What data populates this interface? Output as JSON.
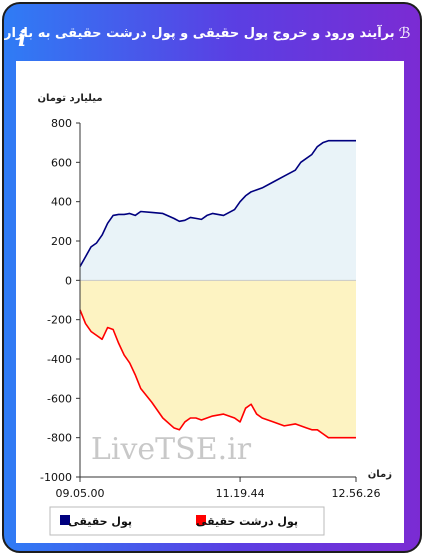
{
  "header": {
    "title": "برآیند ورود و خروج پول حقیقی و پول درشت حقیقی به بازار",
    "title_icon": "chart-icon",
    "info_icon": "info-icon",
    "info_glyph": "i"
  },
  "chart_data": {
    "type": "area",
    "ylabel": "میلیارد تومان",
    "xlabel": "زمان",
    "ylim": [
      -1000,
      800
    ],
    "yticks": [
      800,
      600,
      400,
      200,
      0,
      -200,
      -400,
      -600,
      -800,
      -1000
    ],
    "xticks": [
      "09.05.00",
      "11.19.44",
      "12.56.26"
    ],
    "x_tick_positions": [
      0,
      0.58,
      1
    ],
    "watermark": "LiveTSE.ir",
    "colors": {
      "real_line": "#00007f",
      "real_fill": "#e9f3f8",
      "big_line": "#ff0000",
      "big_fill": "#fdf3c2"
    },
    "series": [
      {
        "name": "پول حقیقی",
        "key": "real",
        "t": [
          0,
          0.02,
          0.04,
          0.06,
          0.08,
          0.1,
          0.12,
          0.14,
          0.16,
          0.18,
          0.2,
          0.22,
          0.26,
          0.3,
          0.34,
          0.36,
          0.38,
          0.4,
          0.42,
          0.44,
          0.46,
          0.48,
          0.52,
          0.56,
          0.58,
          0.6,
          0.62,
          0.64,
          0.66,
          0.7,
          0.74,
          0.78,
          0.8,
          0.84,
          0.86,
          0.88,
          0.9,
          0.92,
          0.94,
          0.96,
          1.0
        ],
        "values": [
          70,
          120,
          170,
          190,
          230,
          290,
          330,
          335,
          335,
          340,
          330,
          350,
          345,
          340,
          315,
          300,
          305,
          320,
          315,
          310,
          330,
          340,
          330,
          360,
          400,
          430,
          450,
          460,
          470,
          500,
          530,
          560,
          600,
          640,
          680,
          700,
          710,
          710,
          710,
          710,
          710
        ]
      },
      {
        "name": "پول درشت حقیقی",
        "key": "big",
        "t": [
          0,
          0.02,
          0.04,
          0.06,
          0.08,
          0.1,
          0.12,
          0.14,
          0.16,
          0.18,
          0.2,
          0.22,
          0.26,
          0.3,
          0.34,
          0.36,
          0.38,
          0.4,
          0.42,
          0.44,
          0.46,
          0.48,
          0.52,
          0.56,
          0.58,
          0.6,
          0.62,
          0.64,
          0.66,
          0.7,
          0.74,
          0.78,
          0.8,
          0.82,
          0.84,
          0.86,
          0.88,
          0.9,
          1.0
        ],
        "values": [
          -150,
          -220,
          -260,
          -280,
          -300,
          -240,
          -250,
          -320,
          -380,
          -420,
          -480,
          -550,
          -620,
          -700,
          -750,
          -760,
          -720,
          -700,
          -700,
          -710,
          -700,
          -690,
          -680,
          -700,
          -720,
          -650,
          -630,
          -680,
          -700,
          -720,
          -740,
          -730,
          -740,
          -750,
          -760,
          -760,
          -780,
          -800,
          -800
        ]
      }
    ],
    "legend": [
      "پول حقیقی",
      "پول درشت حقیقی"
    ],
    "legend_position": "bottom"
  }
}
